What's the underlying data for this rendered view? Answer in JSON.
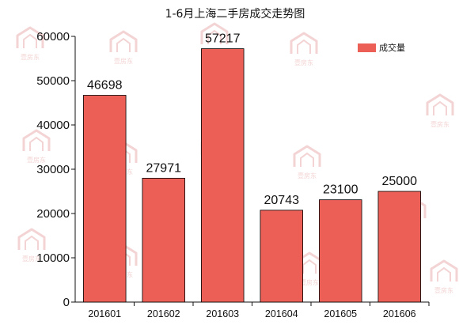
{
  "chart_data": {
    "type": "bar",
    "title": "1-6月上海二手房成交走势图",
    "categories": [
      "201601",
      "201602",
      "201603",
      "201604",
      "201605",
      "201606"
    ],
    "series": [
      {
        "name": "成交量",
        "values": [
          46698,
          27971,
          57217,
          20743,
          23100,
          25000
        ]
      }
    ],
    "value_labels": [
      "46698",
      "27971",
      "57217",
      "20743",
      "23100",
      "25000"
    ],
    "xlabel": "",
    "ylabel": "",
    "ylim": [
      0,
      60000
    ],
    "yticks": [
      0,
      10000,
      20000,
      30000,
      40000,
      50000,
      60000
    ],
    "ytick_labels": [
      "0",
      "10000",
      "20000",
      "30000",
      "40000",
      "50000",
      "60000"
    ],
    "grid": false,
    "legend_position": "top-right",
    "colors": {
      "bar": "#eb5f57",
      "axis": "#111111",
      "watermark": "#f3d3d3"
    }
  },
  "watermark": {
    "text": "壹房东",
    "icon": "house-logo-icon"
  }
}
